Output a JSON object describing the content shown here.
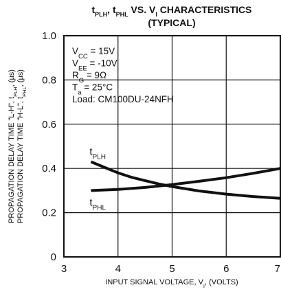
{
  "chart_data": {
    "type": "line",
    "title": {
      "parts": [
        {
          "text": "t",
          "sub": false
        },
        {
          "text": "PLH",
          "sub": true
        },
        {
          "text": ", t",
          "sub": false
        },
        {
          "text": "PHL",
          "sub": true
        },
        {
          "text": " VS. V",
          "sub": false
        },
        {
          "text": "I",
          "sub": true
        },
        {
          "text": " CHARACTERISTICS",
          "sub": false
        }
      ],
      "line2": "(TYPICAL)"
    },
    "xlabel": {
      "parts": [
        {
          "text": "INPUT SIGNAL VOLTAGE, V",
          "sub": false
        },
        {
          "text": "I",
          "sub": true
        },
        {
          "text": ", (VOLTS)",
          "sub": false
        }
      ]
    },
    "ylabel": {
      "line1": [
        {
          "text": "PROPAGATION DELAY TIME \"L-H\", t",
          "sub": false
        },
        {
          "text": "PLH",
          "sub": true
        },
        {
          "text": ", (µs)",
          "sub": false
        }
      ],
      "line2": [
        {
          "text": "PROPAGATION DELAY TIME \"H-L\", t",
          "sub": false
        },
        {
          "text": "PHL",
          "sub": true
        },
        {
          "text": ", (µs)",
          "sub": false
        }
      ]
    },
    "xlim": [
      3,
      7
    ],
    "ylim": [
      0,
      1.0
    ],
    "x_ticks": [
      3,
      4,
      5,
      6,
      7
    ],
    "y_ticks": [
      0,
      0.2,
      0.4,
      0.6,
      0.8,
      1.0
    ],
    "x_tick_labels": [
      "3",
      "4",
      "5",
      "6",
      "7"
    ],
    "y_tick_labels": [
      "0",
      "0.2",
      "0.4",
      "0.6",
      "0.8",
      "1.0"
    ],
    "grid": true,
    "conditions": [
      [
        {
          "text": "V",
          "sub": false
        },
        {
          "text": "CC",
          "sub": true
        },
        {
          "text": " = 15V",
          "sub": false
        }
      ],
      [
        {
          "text": "V",
          "sub": false
        },
        {
          "text": "EE",
          "sub": true
        },
        {
          "text": " = -10V",
          "sub": false
        }
      ],
      [
        {
          "text": "R",
          "sub": false
        },
        {
          "text": "G",
          "sub": true
        },
        {
          "text": " = 9Ω",
          "sub": false
        }
      ],
      [
        {
          "text": "T",
          "sub": false
        },
        {
          "text": "a",
          "sub": true
        },
        {
          "text": " = 25°C",
          "sub": false
        }
      ],
      [
        {
          "text": "Load: CM100DU-24NFH",
          "sub": false
        }
      ]
    ],
    "series": [
      {
        "name": "tPLH",
        "label_parts": [
          {
            "text": "t",
            "sub": false
          },
          {
            "text": "PLH",
            "sub": true
          }
        ],
        "x": [
          3.5,
          3.75,
          4.0,
          4.25,
          4.5,
          4.75,
          5.0,
          5.5,
          6.0,
          6.5,
          7.0
        ],
        "y": [
          0.43,
          0.405,
          0.38,
          0.36,
          0.345,
          0.33,
          0.318,
          0.298,
          0.284,
          0.273,
          0.265
        ]
      },
      {
        "name": "tPHL",
        "label_parts": [
          {
            "text": "t",
            "sub": false
          },
          {
            "text": "PHL",
            "sub": true
          }
        ],
        "x": [
          3.5,
          4.0,
          4.5,
          5.0,
          5.5,
          6.0,
          6.5,
          7.0
        ],
        "y": [
          0.3,
          0.305,
          0.314,
          0.327,
          0.342,
          0.358,
          0.378,
          0.4
        ]
      }
    ]
  }
}
